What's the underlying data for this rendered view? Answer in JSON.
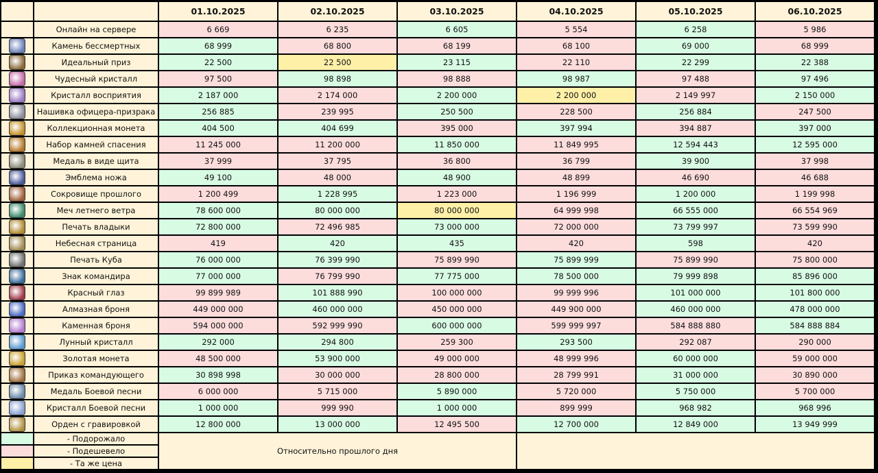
{
  "table": {
    "header": [
      "01.10.2025",
      "02.10.2025",
      "03.10.2025",
      "04.10.2025",
      "05.10.2025",
      "06.10.2025"
    ],
    "header_color": "#fff4d9",
    "rows": [
      {
        "name": "Онлайн на сервере",
        "values": [
          "6 669",
          "6 235",
          "6 605",
          "5 554",
          "6 258",
          "5 986"
        ],
        "colors": [
          "#fddcdc",
          "#fddcdc",
          "#d8fbe4",
          "#fddcdc",
          "#d8fbe4",
          "#fddcdc"
        ]
      },
      {
        "name": "Камень бессмертных",
        "values": [
          "68 999",
          "68 800",
          "68 199",
          "68 100",
          "69 000",
          "68 999"
        ],
        "colors": [
          "#d8fbe4",
          "#fddcdc",
          "#fddcdc",
          "#fddcdc",
          "#d8fbe4",
          "#fddcdc"
        ]
      },
      {
        "name": "Идеальный приз",
        "values": [
          "22 500",
          "22 500",
          "23 115",
          "22 110",
          "22 299",
          "22 388"
        ],
        "colors": [
          "#d8fbe4",
          "#fff0a8",
          "#d8fbe4",
          "#fddcdc",
          "#d8fbe4",
          "#d8fbe4"
        ]
      },
      {
        "name": "Чудесный кристалл",
        "values": [
          "97 500",
          "98 898",
          "98 888",
          "98 987",
          "97 488",
          "97 496"
        ],
        "colors": [
          "#fddcdc",
          "#d8fbe4",
          "#fddcdc",
          "#d8fbe4",
          "#fddcdc",
          "#d8fbe4"
        ]
      },
      {
        "name": "Кристалл восприятия",
        "values": [
          "2 187 000",
          "2 174 000",
          "2 200 000",
          "2 200 000",
          "2 149 997",
          "2 150 000"
        ],
        "colors": [
          "#d8fbe4",
          "#fddcdc",
          "#d8fbe4",
          "#fff0a8",
          "#fddcdc",
          "#d8fbe4"
        ]
      },
      {
        "name": "Нашивка офицера-призрака",
        "values": [
          "256 885",
          "239 995",
          "250 500",
          "228 500",
          "256 884",
          "247 500"
        ],
        "colors": [
          "#d8fbe4",
          "#fddcdc",
          "#d8fbe4",
          "#fddcdc",
          "#d8fbe4",
          "#fddcdc"
        ]
      },
      {
        "name": "Коллекционная монета",
        "values": [
          "404 500",
          "404 699",
          "395 000",
          "397 994",
          "394 887",
          "397 000"
        ],
        "colors": [
          "#d8fbe4",
          "#d8fbe4",
          "#fddcdc",
          "#d8fbe4",
          "#fddcdc",
          "#d8fbe4"
        ]
      },
      {
        "name": "Набор камней спасения",
        "values": [
          "11 245 000",
          "11 200 000",
          "11 850 000",
          "11 849 995",
          "12 594 443",
          "12 595 000"
        ],
        "colors": [
          "#fddcdc",
          "#fddcdc",
          "#d8fbe4",
          "#fddcdc",
          "#d8fbe4",
          "#d8fbe4"
        ]
      },
      {
        "name": "Медаль в виде щита",
        "values": [
          "37 999",
          "37 795",
          "36 800",
          "36 799",
          "39 900",
          "37 998"
        ],
        "colors": [
          "#fddcdc",
          "#fddcdc",
          "#fddcdc",
          "#fddcdc",
          "#d8fbe4",
          "#fddcdc"
        ]
      },
      {
        "name": "Эмблема ножа",
        "values": [
          "49 100",
          "48 000",
          "48 900",
          "48 899",
          "46 690",
          "46 688"
        ],
        "colors": [
          "#d8fbe4",
          "#fddcdc",
          "#d8fbe4",
          "#fddcdc",
          "#fddcdc",
          "#fddcdc"
        ]
      },
      {
        "name": "Сокровище прошлого",
        "values": [
          "1 200 499",
          "1 228 995",
          "1 223 000",
          "1 196 999",
          "1 200 000",
          "1 199 998"
        ],
        "colors": [
          "#fddcdc",
          "#d8fbe4",
          "#fddcdc",
          "#fddcdc",
          "#d8fbe4",
          "#fddcdc"
        ]
      },
      {
        "name": "Меч летнего ветра",
        "values": [
          "78 600 000",
          "80 000 000",
          "80 000 000",
          "64 999 998",
          "66 555 000",
          "66 554 969"
        ],
        "colors": [
          "#d8fbe4",
          "#d8fbe4",
          "#fff0a8",
          "#fddcdc",
          "#d8fbe4",
          "#fddcdc"
        ]
      },
      {
        "name": "Печать владыки",
        "values": [
          "72 800 000",
          "72 496 985",
          "73 000 000",
          "72 000 000",
          "73 799 997",
          "73 599 990"
        ],
        "colors": [
          "#d8fbe4",
          "#fddcdc",
          "#d8fbe4",
          "#fddcdc",
          "#d8fbe4",
          "#fddcdc"
        ]
      },
      {
        "name": "Небесная страница",
        "values": [
          "419",
          "420",
          "435",
          "420",
          "598",
          "420"
        ],
        "colors": [
          "#fddcdc",
          "#d8fbe4",
          "#d8fbe4",
          "#fddcdc",
          "#d8fbe4",
          "#fddcdc"
        ]
      },
      {
        "name": "Печать Куба",
        "values": [
          "76 000 000",
          "76 399 990",
          "75 899 990",
          "75 899 999",
          "75 899 990",
          "75 800 000"
        ],
        "colors": [
          "#d8fbe4",
          "#d8fbe4",
          "#fddcdc",
          "#d8fbe4",
          "#fddcdc",
          "#fddcdc"
        ]
      },
      {
        "name": "Знак командира",
        "values": [
          "77 000 000",
          "76 799 990",
          "77 775 000",
          "78 500 000",
          "79 999 898",
          "85 896 000"
        ],
        "colors": [
          "#d8fbe4",
          "#fddcdc",
          "#d8fbe4",
          "#d8fbe4",
          "#d8fbe4",
          "#d8fbe4"
        ]
      },
      {
        "name": "Красный глаз",
        "values": [
          "99 899 989",
          "101 888 990",
          "100 000 000",
          "99 999 996",
          "101 000 000",
          "101 800 000"
        ],
        "colors": [
          "#fddcdc",
          "#d8fbe4",
          "#fddcdc",
          "#fddcdc",
          "#d8fbe4",
          "#d8fbe4"
        ]
      },
      {
        "name": "Алмазная броня",
        "values": [
          "449 000 000",
          "460 000 000",
          "450 000 000",
          "449 900 000",
          "460 000 000",
          "478 000 000"
        ],
        "colors": [
          "#fddcdc",
          "#d8fbe4",
          "#fddcdc",
          "#fddcdc",
          "#d8fbe4",
          "#d8fbe4"
        ]
      },
      {
        "name": "Каменная броня",
        "values": [
          "594 000 000",
          "592 999 990",
          "600 000 000",
          "599 999 997",
          "584 888 880",
          "584 888 884"
        ],
        "colors": [
          "#fddcdc",
          "#fddcdc",
          "#d8fbe4",
          "#fddcdc",
          "#fddcdc",
          "#d8fbe4"
        ]
      },
      {
        "name": "Лунный кристалл",
        "values": [
          "292 000",
          "294 800",
          "259 300",
          "293 500",
          "292 087",
          "290 000"
        ],
        "colors": [
          "#d8fbe4",
          "#d8fbe4",
          "#fddcdc",
          "#d8fbe4",
          "#fddcdc",
          "#fddcdc"
        ]
      },
      {
        "name": "Золотая монета",
        "values": [
          "48 500 000",
          "53 900 000",
          "49 000 000",
          "48 999 996",
          "60 000 000",
          "59 000 000"
        ],
        "colors": [
          "#fddcdc",
          "#d8fbe4",
          "#fddcdc",
          "#fddcdc",
          "#d8fbe4",
          "#fddcdc"
        ]
      },
      {
        "name": "Приказ командующего",
        "values": [
          "30 898 998",
          "30 000 000",
          "28 800 000",
          "28 799 991",
          "31 000 000",
          "30 890 000"
        ],
        "colors": [
          "#d8fbe4",
          "#fddcdc",
          "#fddcdc",
          "#fddcdc",
          "#d8fbe4",
          "#fddcdc"
        ]
      },
      {
        "name": "Медаль Боевой песни",
        "values": [
          "6 000 000",
          "5 715 000",
          "5 890 000",
          "5 720 000",
          "5 750 000",
          "5 700 000"
        ],
        "colors": [
          "#fddcdc",
          "#fddcdc",
          "#d8fbe4",
          "#fddcdc",
          "#d8fbe4",
          "#fddcdc"
        ]
      },
      {
        "name": "Кристалл Боевой песни",
        "values": [
          "1 000 000",
          "999 990",
          "1 000 000",
          "899 999",
          "968 982",
          "968 996"
        ],
        "colors": [
          "#d8fbe4",
          "#fddcdc",
          "#d8fbe4",
          "#fddcdc",
          "#d8fbe4",
          "#d8fbe4"
        ]
      },
      {
        "name": "Орден с гравировкой",
        "values": [
          "12 800 000",
          "13 000 000",
          "12 495 500",
          "12 700 000",
          "12 849 000",
          "13 949 999"
        ],
        "colors": [
          "#d8fbe4",
          "#d8fbe4",
          "#fddcdc",
          "#d8fbe4",
          "#d8fbe4",
          "#d8fbe4"
        ]
      }
    ]
  },
  "legend": {
    "items": [
      {
        "label": "- Подорожало",
        "color": "#d8fbe4"
      },
      {
        "label": "- Подешевело",
        "color": "#fddcdc"
      },
      {
        "label": "- Та же цена",
        "color": "#fff0a8"
      }
    ],
    "note": "Относительно прошлого дня"
  }
}
